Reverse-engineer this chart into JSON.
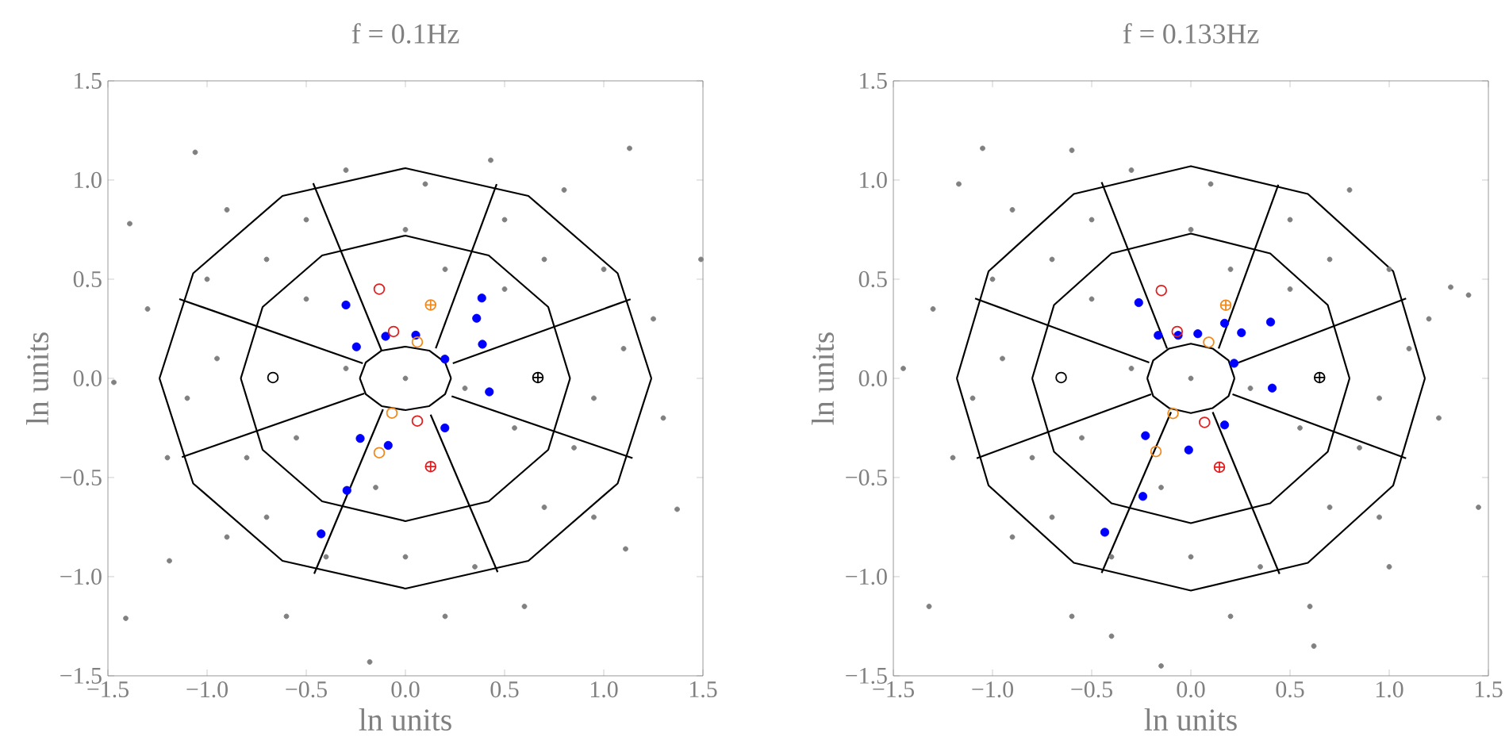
{
  "chart_data": [
    {
      "type": "scatter",
      "title": "f = 0.1Hz",
      "xlabel": "ln units",
      "ylabel": "ln units",
      "xlim": [
        -1.5,
        1.5
      ],
      "ylim": [
        -1.5,
        1.5
      ],
      "xticks": [
        {
          "value": -1.5,
          "label": "−1.5"
        },
        {
          "value": -1.0,
          "label": "−1.0"
        },
        {
          "value": -0.5,
          "label": "−0.5"
        },
        {
          "value": 0,
          "label": "0.0"
        },
        {
          "value": 0.5,
          "label": "0.5"
        },
        {
          "value": 1.0,
          "label": "1.0"
        },
        {
          "value": 1.5,
          "label": "1.5"
        }
      ],
      "yticks": [
        {
          "value": -1.5,
          "label": "−1.5"
        },
        {
          "value": -1.0,
          "label": "−1.0"
        },
        {
          "value": -0.5,
          "label": "−0.5"
        },
        {
          "value": 0,
          "label": "0.0"
        },
        {
          "value": 0.5,
          "label": "0.5"
        },
        {
          "value": 1.0,
          "label": "1.0"
        },
        {
          "value": 1.5,
          "label": "1.5"
        }
      ],
      "series": [
        {
          "color": "#808080",
          "marker": "circle",
          "x": [
            1.13,
            -1.06,
            -1.39,
            1.49,
            -1.47,
            1.37,
            -1.41,
            -0.18,
            1.11,
            0.43,
            -1.19,
            -0.9,
            0.8,
            -0.3,
            0.1,
            1.25,
            -1.3,
            -1.2,
            1.3,
            0.6,
            -0.6,
            0.2,
            -0.9,
            0.95,
            -1.0,
            1.0,
            -0.5,
            0.5,
            -0.7,
            0.7,
            -0.95,
            0.95,
            -0.8,
            0.85,
            -0.4,
            0.35,
            0,
            0,
            -0.5,
            0.5,
            -0.55,
            0.55,
            -0.3,
            0.3,
            0,
            -0.15,
            0.2,
            -0.7,
            0.7,
            -1.1,
            1.1
          ],
          "values": [
            1.16,
            1.14,
            0.78,
            0.6,
            -0.02,
            -0.66,
            -1.21,
            -1.43,
            -0.86,
            1.1,
            -0.92,
            0.85,
            0.95,
            1.05,
            0.98,
            0.3,
            0.35,
            -0.4,
            -0.2,
            -1.15,
            -1.2,
            -1.2,
            -0.8,
            -0.7,
            0.5,
            0.55,
            0.8,
            0.8,
            0.6,
            0.6,
            0.1,
            -0.1,
            -0.4,
            -0.35,
            -0.9,
            -0.95,
            -0.9,
            0.75,
            0.4,
            0.45,
            -0.3,
            -0.25,
            0.05,
            -0.05,
            0,
            -0.55,
            0.55,
            -0.7,
            -0.65,
            -0.1,
            0.15
          ]
        },
        {
          "type": "line",
          "color": "#000000",
          "x": [
            -1.24,
            -1.07,
            -0.62,
            0,
            0.62,
            1.07,
            1.24
          ],
          "values": [
            0,
            0.53,
            0.92,
            1.06,
            0.92,
            0.53,
            0
          ]
        },
        {
          "type": "line",
          "color": "#000000",
          "x": [
            -1.24,
            -1.07,
            -0.62,
            0,
            0.62,
            1.07,
            1.24
          ],
          "values": [
            0,
            -0.53,
            -0.92,
            -1.06,
            -0.92,
            -0.53,
            0
          ]
        },
        {
          "type": "line",
          "color": "#000000",
          "x": [
            -0.83,
            -0.72,
            -0.42,
            0,
            0.42,
            0.72,
            0.83
          ],
          "values": [
            0,
            0.36,
            0.62,
            0.72,
            0.62,
            0.36,
            0
          ]
        },
        {
          "type": "line",
          "color": "#000000",
          "x": [
            -0.83,
            -0.72,
            -0.42,
            0,
            0.42,
            0.72,
            0.83
          ],
          "values": [
            0,
            -0.36,
            -0.62,
            -0.72,
            -0.62,
            -0.36,
            0
          ]
        },
        {
          "type": "line",
          "color": "#000000",
          "x": [
            -0.23,
            -0.2,
            -0.12,
            0,
            0.12,
            0.2,
            0.23
          ],
          "values": [
            0,
            0.08,
            0.14,
            0.16,
            0.14,
            0.08,
            0
          ]
        },
        {
          "type": "line",
          "color": "#000000",
          "x": [
            -0.23,
            -0.2,
            -0.12,
            0,
            0.12,
            0.2,
            0.23
          ],
          "values": [
            0,
            -0.08,
            -0.14,
            -0.16,
            -0.14,
            -0.08,
            0
          ]
        },
        {
          "type": "line",
          "color": "#000000",
          "x": [
            -0.465,
            -0.12
          ],
          "values": [
            0.984,
            0.14
          ]
        },
        {
          "type": "line",
          "color": "#000000",
          "x": [
            0.46,
            0.153
          ],
          "values": [
            0.979,
            0.151
          ]
        },
        {
          "type": "line",
          "color": "#000000",
          "x": [
            1.135,
            0.239
          ],
          "values": [
            0.399,
            0.076
          ]
        },
        {
          "type": "line",
          "color": "#000000",
          "x": [
            1.145,
            0.233
          ],
          "values": [
            -0.402,
            -0.09
          ]
        },
        {
          "type": "line",
          "color": "#000000",
          "x": [
            0.465,
            0.127
          ],
          "values": [
            -0.977,
            -0.183
          ]
        },
        {
          "type": "line",
          "color": "#000000",
          "x": [
            -0.46,
            -0.113
          ],
          "values": [
            -0.985,
            -0.156
          ]
        },
        {
          "type": "line",
          "color": "#000000",
          "x": [
            -1.127,
            -0.207
          ],
          "values": [
            -0.397,
            -0.076
          ]
        },
        {
          "type": "line",
          "color": "#000000",
          "x": [
            -1.14,
            -0.215
          ],
          "values": [
            0.4,
            0.076
          ]
        },
        {
          "color": "#0000ff",
          "marker": "circle",
          "x": [
            -0.3,
            -0.247,
            -0.1,
            0.052,
            0.199,
            0.385,
            0.359,
            0.388,
            0.423,
            0.199,
            -0.228,
            -0.087,
            -0.295,
            -0.425
          ],
          "values": [
            0.37,
            0.159,
            0.212,
            0.218,
            0.097,
            0.405,
            0.303,
            0.172,
            -0.068,
            -0.25,
            -0.303,
            -0.338,
            -0.565,
            -0.784
          ]
        },
        {
          "color": "#e02020",
          "x": [
            -0.06,
            0.06
          ],
          "values": [
            0.236,
            -0.215
          ]
        },
        {
          "color": "#e02020",
          "x": [
            -0.132
          ],
          "values": [
            0.45
          ]
        },
        {
          "color": "#e02020",
          "marker": "cross",
          "x": [
            0.127
          ],
          "values": [
            -0.445
          ]
        },
        {
          "color": "#f08a1e",
          "x": [
            0.06,
            -0.068
          ],
          "values": [
            0.183,
            -0.175
          ]
        },
        {
          "color": "#f08a1e",
          "marker": "cross",
          "x": [
            0.127
          ],
          "values": [
            0.37
          ]
        },
        {
          "color": "#f08a1e",
          "x": [
            -0.132
          ],
          "values": [
            -0.375
          ]
        },
        {
          "color": "#000000",
          "x": [
            -0.668
          ],
          "values": [
            0.004
          ]
        },
        {
          "color": "#000000",
          "marker": "cross",
          "x": [
            0.668
          ],
          "values": [
            0.004
          ]
        }
      ]
    },
    {
      "type": "scatter",
      "title": "f = 0.133Hz",
      "xlabel": "ln units",
      "ylabel": "ln units",
      "xlim": [
        -1.5,
        1.5
      ],
      "ylim": [
        -1.5,
        1.5
      ],
      "xticks": [
        {
          "value": -1.5,
          "label": "−1.5"
        },
        {
          "value": -1.0,
          "label": "−1.0"
        },
        {
          "value": -0.5,
          "label": "−0.5"
        },
        {
          "value": 0,
          "label": "0.0"
        },
        {
          "value": 0.5,
          "label": "0.5"
        },
        {
          "value": 1.0,
          "label": "1.0"
        },
        {
          "value": 1.5,
          "label": "1.5"
        }
      ],
      "yticks": [
        {
          "value": -1.5,
          "label": "−1.5"
        },
        {
          "value": -1.0,
          "label": "−1.0"
        },
        {
          "value": -0.5,
          "label": "−0.5"
        },
        {
          "value": 0,
          "label": "0.0"
        },
        {
          "value": 0.5,
          "label": "0.5"
        },
        {
          "value": 1.0,
          "label": "1.0"
        },
        {
          "value": 1.5,
          "label": "1.5"
        }
      ],
      "series": [
        {
          "color": "#808080",
          "marker": "circle",
          "x": [
            -1.05,
            -0.6,
            -1.17,
            1.31,
            1.4,
            -1.45,
            1.45,
            -1.32,
            0.62,
            -0.15,
            1.0,
            -0.4,
            -0.9,
            0.8,
            -0.3,
            0.1,
            1.2,
            -1.3,
            -1.2,
            1.25,
            0.6,
            -0.6,
            0.2,
            -0.9,
            0.95,
            -1.0,
            1.0,
            -0.5,
            0.5,
            -0.7,
            0.7,
            -0.95,
            0.95,
            -0.8,
            0.85,
            -0.4,
            0.35,
            0,
            0,
            -0.5,
            0.5,
            -0.55,
            0.55,
            -0.3,
            0.3,
            0,
            -0.15,
            0.2,
            -0.7,
            0.7,
            -1.1,
            1.1
          ],
          "values": [
            1.16,
            1.15,
            0.98,
            0.46,
            0.42,
            0.05,
            -0.65,
            -1.15,
            -1.35,
            -1.45,
            -0.95,
            -1.3,
            0.85,
            0.95,
            1.05,
            0.98,
            0.3,
            0.35,
            -0.4,
            -0.2,
            -1.15,
            -1.2,
            -1.2,
            -0.8,
            -0.7,
            0.5,
            0.55,
            0.8,
            0.8,
            0.6,
            0.6,
            0.1,
            -0.1,
            -0.4,
            -0.35,
            -0.9,
            -0.95,
            -0.9,
            0.75,
            0.4,
            0.45,
            -0.3,
            -0.25,
            0.05,
            -0.05,
            0,
            -0.55,
            0.55,
            -0.7,
            -0.65,
            -0.1,
            0.15
          ]
        },
        {
          "type": "line",
          "color": "#000000",
          "x": [
            -1.18,
            -1.02,
            -0.59,
            0,
            0.59,
            1.02,
            1.18
          ],
          "values": [
            0,
            0.54,
            0.93,
            1.07,
            0.93,
            0.54,
            0
          ]
        },
        {
          "type": "line",
          "color": "#000000",
          "x": [
            -1.18,
            -1.02,
            -0.59,
            0,
            0.59,
            1.02,
            1.18
          ],
          "values": [
            0,
            -0.54,
            -0.93,
            -1.07,
            -0.93,
            -0.54,
            0
          ]
        },
        {
          "type": "line",
          "color": "#000000",
          "x": [
            -0.8,
            -0.69,
            -0.4,
            0,
            0.4,
            0.69,
            0.8
          ],
          "values": [
            0,
            0.37,
            0.63,
            0.73,
            0.63,
            0.37,
            0
          ]
        },
        {
          "type": "line",
          "color": "#000000",
          "x": [
            -0.8,
            -0.69,
            -0.4,
            0,
            0.4,
            0.69,
            0.8
          ],
          "values": [
            0,
            -0.37,
            -0.63,
            -0.73,
            -0.63,
            -0.37,
            0
          ]
        },
        {
          "type": "line",
          "color": "#000000",
          "x": [
            -0.22,
            -0.19,
            -0.11,
            0,
            0.11,
            0.19,
            0.22
          ],
          "values": [
            0,
            0.09,
            0.15,
            0.175,
            0.15,
            0.09,
            0
          ]
        },
        {
          "type": "line",
          "color": "#000000",
          "x": [
            -0.22,
            -0.19,
            -0.11,
            0,
            0.11,
            0.19,
            0.22
          ],
          "values": [
            0,
            -0.09,
            -0.15,
            -0.175,
            -0.15,
            -0.09,
            0
          ]
        },
        {
          "type": "line",
          "color": "#000000",
          "x": [
            -0.45,
            -0.12
          ],
          "values": [
            0.989,
            0.15
          ]
        },
        {
          "type": "line",
          "color": "#000000",
          "x": [
            0.441,
            0.14
          ],
          "values": [
            0.976,
            0.15
          ]
        },
        {
          "type": "line",
          "color": "#000000",
          "x": [
            1.085,
            0.215
          ],
          "values": [
            0.403,
            0.07
          ]
        },
        {
          "type": "line",
          "color": "#000000",
          "x": [
            1.085,
            0.21
          ],
          "values": [
            -0.403,
            -0.08
          ]
        },
        {
          "type": "line",
          "color": "#000000",
          "x": [
            0.447,
            0.11
          ],
          "values": [
            -0.986,
            -0.17
          ]
        },
        {
          "type": "line",
          "color": "#000000",
          "x": [
            -0.45,
            -0.1
          ],
          "values": [
            -0.981,
            -0.17
          ]
        },
        {
          "type": "line",
          "color": "#000000",
          "x": [
            -1.08,
            -0.2
          ],
          "values": [
            -0.403,
            -0.08
          ]
        },
        {
          "type": "line",
          "color": "#000000",
          "x": [
            -1.088,
            -0.21
          ],
          "values": [
            0.403,
            0.08
          ]
        },
        {
          "color": "#0000ff",
          "marker": "circle",
          "x": [
            -0.263,
            -0.165,
            -0.064,
            0.035,
            0.17,
            0.255,
            0.402,
            0.218,
            0.41,
            0.17,
            -0.229,
            -0.011,
            -0.242,
            -0.434
          ],
          "values": [
            0.382,
            0.217,
            0.217,
            0.225,
            0.278,
            0.23,
            0.284,
            0.076,
            -0.049,
            -0.235,
            -0.289,
            -0.361,
            -0.595,
            -0.776
          ]
        },
        {
          "color": "#e02020",
          "x": [
            -0.069,
            0.069
          ],
          "values": [
            0.236,
            -0.222
          ]
        },
        {
          "color": "#e02020",
          "x": [
            -0.149
          ],
          "values": [
            0.443
          ]
        },
        {
          "color": "#e02020",
          "marker": "cross",
          "x": [
            0.144
          ],
          "values": [
            -0.448
          ]
        },
        {
          "color": "#f08a1e",
          "x": [
            0.09,
            -0.09
          ],
          "values": [
            0.182,
            -0.177
          ]
        },
        {
          "color": "#f08a1e",
          "marker": "cross",
          "x": [
            0.176
          ],
          "values": [
            0.369
          ]
        },
        {
          "color": "#f08a1e",
          "x": [
            -0.176
          ],
          "values": [
            -0.369
          ]
        },
        {
          "color": "#000000",
          "x": [
            -0.654
          ],
          "values": [
            0.004
          ]
        },
        {
          "color": "#000000",
          "marker": "cross",
          "x": [
            0.649
          ],
          "values": [
            0.004
          ]
        }
      ]
    }
  ]
}
